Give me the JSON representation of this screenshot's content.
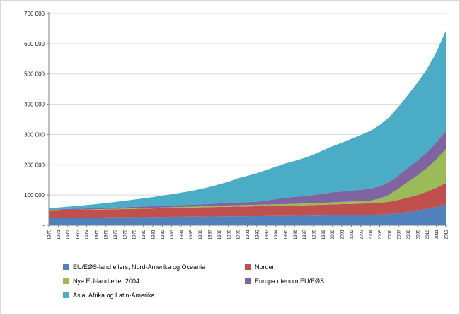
{
  "chart_data": {
    "type": "area",
    "stacked": true,
    "grid": true,
    "legend_position": "bottom",
    "ylim": [
      0,
      700000
    ],
    "ytick_step": 100000,
    "ytick_labels": [
      "-",
      "100 000",
      "200 000",
      "300 000",
      "400 000",
      "500 000",
      "600 000",
      "700 000"
    ],
    "x": [
      1970,
      1971,
      1972,
      1973,
      1974,
      1975,
      1976,
      1977,
      1978,
      1979,
      1980,
      1981,
      1982,
      1983,
      1984,
      1985,
      1986,
      1987,
      1988,
      1989,
      1990,
      1991,
      1992,
      1993,
      1994,
      1995,
      1996,
      1997,
      1998,
      1999,
      2000,
      2001,
      2002,
      2003,
      2004,
      2005,
      2006,
      2007,
      2008,
      2009,
      2010,
      2011,
      2012
    ],
    "series": [
      {
        "name": "EU/EØS-land ellers, Nord-Amerika og Oceania",
        "color": "#4F81BD",
        "values": [
          24000,
          24300,
          24600,
          24900,
          25200,
          25500,
          25800,
          26100,
          26400,
          26700,
          27000,
          27300,
          27600,
          27900,
          28200,
          28500,
          28800,
          29100,
          29400,
          29700,
          30000,
          30200,
          30400,
          30600,
          30800,
          31000,
          31300,
          31600,
          32000,
          32400,
          33000,
          33400,
          33800,
          34200,
          34600,
          35500,
          37000,
          40000,
          44000,
          48000,
          54000,
          61000,
          70000
        ]
      },
      {
        "name": "Norden",
        "color": "#C0504D",
        "values": [
          24000,
          24400,
          24800,
          25200,
          25600,
          26000,
          26400,
          26800,
          27200,
          27600,
          28000,
          28400,
          28800,
          29200,
          29600,
          30000,
          30400,
          30800,
          31200,
          31600,
          32000,
          32300,
          32600,
          32900,
          33200,
          33500,
          34000,
          34500,
          35000,
          35500,
          36000,
          36500,
          37000,
          37500,
          38000,
          39000,
          41000,
          44000,
          48000,
          52000,
          57000,
          63000,
          70000
        ]
      },
      {
        "name": "Nye EU-land etter 2004",
        "color": "#9BBB59",
        "values": [
          1000,
          1100,
          1200,
          1300,
          1400,
          1500,
          1600,
          1700,
          1800,
          1900,
          2000,
          2200,
          2400,
          2600,
          2800,
          3000,
          3300,
          3600,
          4000,
          4300,
          4600,
          4800,
          5000,
          5200,
          5400,
          5600,
          5800,
          6000,
          6300,
          6600,
          7000,
          7400,
          7800,
          8200,
          9000,
          14000,
          23000,
          37000,
          52000,
          65000,
          78000,
          94000,
          112000
        ]
      },
      {
        "name": "Europa utenom EU/EØS",
        "color": "#8064A2",
        "values": [
          3000,
          3200,
          3400,
          3600,
          3800,
          4000,
          4200,
          4400,
          4600,
          4800,
          5000,
          5300,
          5600,
          5900,
          6200,
          6500,
          6900,
          7300,
          7700,
          8100,
          8500,
          9000,
          10000,
          13000,
          17000,
          21000,
          22500,
          24000,
          26000,
          30000,
          33000,
          34500,
          36000,
          37500,
          39000,
          40500,
          42000,
          44000,
          46500,
          49000,
          52000,
          56000,
          60000
        ]
      },
      {
        "name": "Asia, Afrika og Latin-Amerika",
        "color": "#4BACC6",
        "values": [
          5000,
          6000,
          7500,
          9000,
          11000,
          13000,
          15500,
          18000,
          21000,
          24000,
          27000,
          30000,
          33500,
          37000,
          41000,
          45000,
          50000,
          56000,
          63000,
          70000,
          80000,
          87000,
          94000,
          101000,
          107000,
          113000,
          119000,
          126000,
          134000,
          143000,
          152000,
          161000,
          171000,
          181000,
          191000,
          202000,
          214000,
          227000,
          241000,
          257000,
          275000,
          298000,
          330000
        ]
      }
    ],
    "style": {
      "gridline_color": "#d9d9d9",
      "axis_color": "#808080",
      "text_color": "#1a1a1a"
    }
  }
}
